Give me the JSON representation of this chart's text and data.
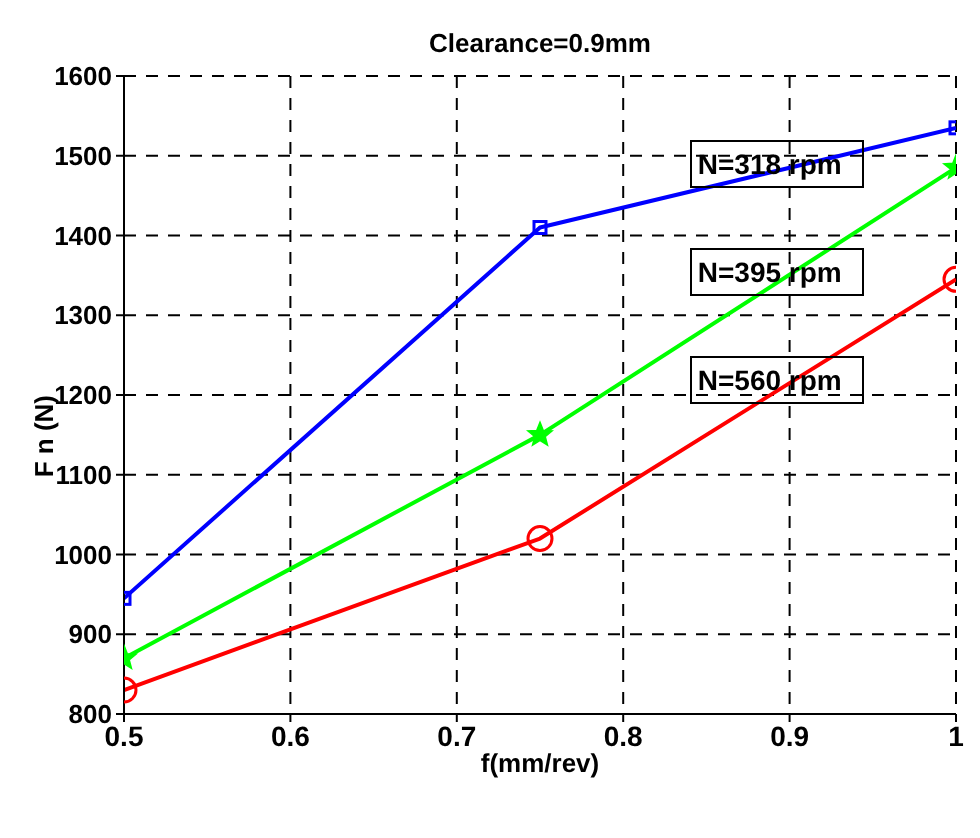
{
  "chart_data": {
    "type": "line",
    "title": "Clearance=0.9mm",
    "xlabel": "f(mm/rev)",
    "ylabel": "F n (N)",
    "x": [
      0.5,
      0.75,
      1
    ],
    "series": [
      {
        "name": "N=318 rpm",
        "color": "#0000ff",
        "marker": "square",
        "values": [
          945,
          1410,
          1535
        ]
      },
      {
        "name": "N=395 rpm",
        "color": "#00ff00",
        "marker": "star",
        "values": [
          870,
          1150,
          1485
        ]
      },
      {
        "name": "N=560 rpm",
        "color": "#ff0000",
        "marker": "circle",
        "values": [
          830,
          1020,
          1345
        ]
      }
    ],
    "xlim": [
      0.5,
      1
    ],
    "xticks": [
      0.5,
      0.6,
      0.7,
      0.8,
      0.9,
      1
    ],
    "ylim": [
      800,
      1600
    ],
    "yticks": [
      800,
      900,
      1000,
      1100,
      1200,
      1300,
      1400,
      1500,
      1600
    ],
    "grid": true,
    "line_style": "solid",
    "legend": false
  }
}
